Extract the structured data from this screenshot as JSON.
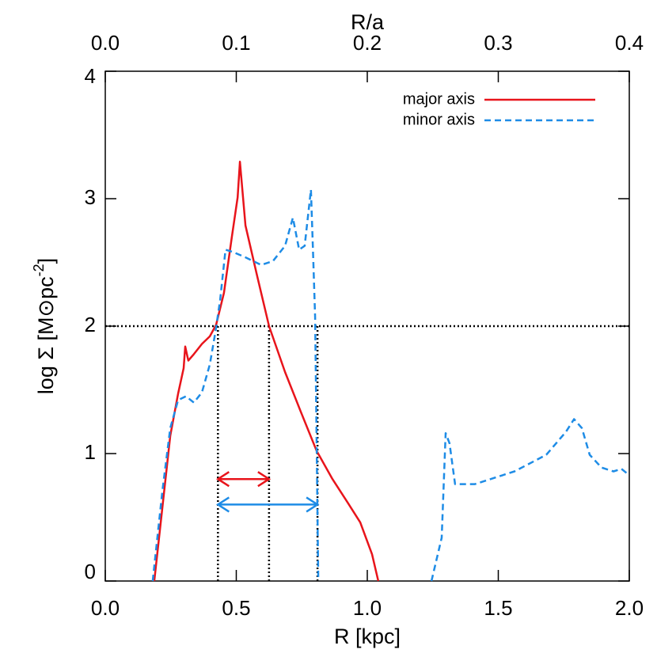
{
  "chart_data": {
    "type": "line",
    "xlabel": "R [kpc]",
    "top_xlabel": "R/a",
    "ylabel": [
      "log Σ [M⊙pc",
      "-2",
      "]"
    ],
    "xlim": [
      0,
      2
    ],
    "xticks": [
      {
        "value": 0,
        "label": "0.0"
      },
      0.5,
      {
        "value": 1,
        "label": "1.0"
      },
      1.5,
      {
        "value": 2,
        "label": "2.0"
      }
    ],
    "top_xlim": [
      0,
      0.4
    ],
    "top_xticks": [
      {
        "value": 0,
        "label": "0.0"
      },
      0.1,
      0.2,
      0.3,
      0.4
    ],
    "ylim": [
      0,
      4
    ],
    "yticks": [
      0,
      1,
      2,
      3,
      4
    ],
    "legend": "upper right",
    "series": [
      {
        "name": "major axis",
        "color": "#e8141b",
        "dash": false,
        "x": [
          0.187,
          0.218,
          0.248,
          0.278,
          0.299,
          0.305,
          0.317,
          0.338,
          0.369,
          0.399,
          0.423,
          0.453,
          0.483,
          0.505,
          0.514,
          0.535,
          0.58,
          0.625,
          0.686,
          0.746,
          0.807,
          0.867,
          0.927,
          0.973,
          1.018,
          1.042
        ],
        "values": [
          0,
          0.58,
          1.14,
          1.47,
          1.67,
          1.84,
          1.73,
          1.78,
          1.86,
          1.92,
          2.01,
          2.26,
          2.7,
          3.01,
          3.29,
          2.79,
          2.39,
          2.0,
          1.64,
          1.33,
          1.02,
          0.8,
          0.61,
          0.46,
          0.21,
          0
        ]
      },
      {
        "name": "minor axis",
        "color": "#1e8ce6",
        "dash": true,
        "x": [
          0.181,
          0.218,
          0.248,
          0.278,
          0.308,
          0.338,
          0.369,
          0.399,
          0.42,
          0.438,
          0.459,
          0.489,
          0.535,
          0.595,
          0.64,
          0.686,
          0.716,
          0.74,
          0.761,
          0.785,
          0.792,
          0.801,
          0.813,
          1.0,
          1.245,
          1.284,
          1.299,
          1.314,
          1.335,
          1.411,
          1.562,
          1.683,
          1.758,
          1.789,
          1.819,
          1.849,
          1.894,
          1.94,
          1.97,
          2.0
        ],
        "values": [
          0,
          0.71,
          1.2,
          1.42,
          1.45,
          1.4,
          1.48,
          1.7,
          1.95,
          2.2,
          2.6,
          2.58,
          2.54,
          2.48,
          2.51,
          2.63,
          2.85,
          2.6,
          2.63,
          3.07,
          2.63,
          2.07,
          0,
          null,
          0,
          0.34,
          1.16,
          1.08,
          0.76,
          0.76,
          0.86,
          0.99,
          1.17,
          1.27,
          1.2,
          0.99,
          0.89,
          0.86,
          0.88,
          0.83
        ]
      }
    ],
    "hline": 2,
    "vlines": [
      0.43,
      0.625,
      0.81
    ],
    "arrows": [
      {
        "x": [
          0.43,
          0.625
        ],
        "y": 0.8,
        "color": "#e8141b"
      },
      {
        "x": [
          0.43,
          0.81
        ],
        "y": 0.6,
        "color": "#1e8ce6"
      }
    ]
  }
}
